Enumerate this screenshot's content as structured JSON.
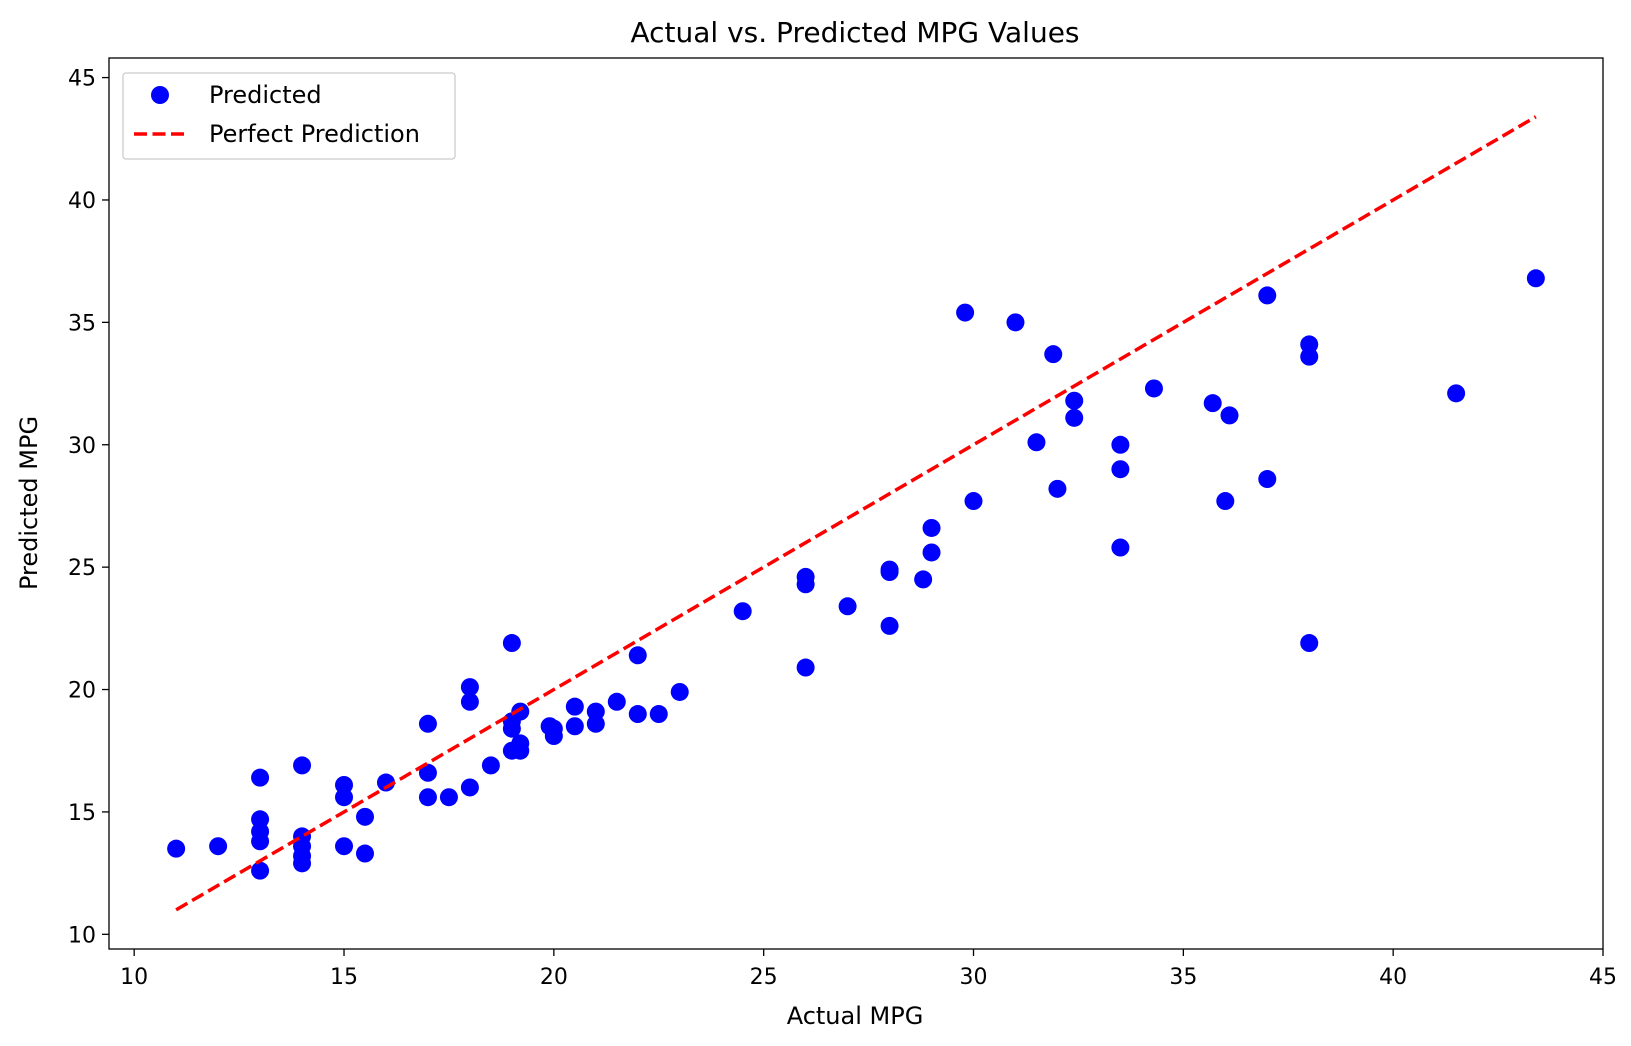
{
  "chart_data": {
    "type": "scatter",
    "title": "Actual vs. Predicted MPG Values",
    "xlabel": "Actual MPG",
    "ylabel": "Predicted MPG",
    "xlim": [
      9.4,
      45
    ],
    "ylim": [
      9.4,
      45.8
    ],
    "xticks": [
      10,
      15,
      20,
      25,
      30,
      35,
      40,
      45
    ],
    "yticks": [
      10,
      15,
      20,
      25,
      30,
      35,
      40,
      45
    ],
    "grid": false,
    "legend_position": "top-left",
    "series": [
      {
        "name": "Predicted",
        "kind": "scatter",
        "color": "#0000ff",
        "points": [
          [
            11,
            13.5
          ],
          [
            12,
            13.6
          ],
          [
            13,
            16.4
          ],
          [
            13,
            14.7
          ],
          [
            13,
            14.2
          ],
          [
            13,
            13.8
          ],
          [
            13,
            12.6
          ],
          [
            14,
            16.9
          ],
          [
            14,
            14.0
          ],
          [
            14,
            13.6
          ],
          [
            14,
            13.2
          ],
          [
            14,
            12.9
          ],
          [
            15,
            16.1
          ],
          [
            15,
            15.6
          ],
          [
            15,
            13.6
          ],
          [
            15.5,
            14.8
          ],
          [
            15.5,
            13.3
          ],
          [
            16,
            16.2
          ],
          [
            17,
            18.6
          ],
          [
            17,
            16.6
          ],
          [
            17,
            15.6
          ],
          [
            17.5,
            15.6
          ],
          [
            18,
            20.1
          ],
          [
            18,
            19.5
          ],
          [
            18,
            16.0
          ],
          [
            18.5,
            16.9
          ],
          [
            19,
            21.9
          ],
          [
            19,
            18.7
          ],
          [
            19,
            18.4
          ],
          [
            19,
            17.5
          ],
          [
            19.2,
            19.1
          ],
          [
            19.2,
            17.8
          ],
          [
            19.2,
            17.5
          ],
          [
            19.9,
            18.5
          ],
          [
            20,
            18.4
          ],
          [
            20,
            18.1
          ],
          [
            20.5,
            19.3
          ],
          [
            20.5,
            18.5
          ],
          [
            21,
            19.1
          ],
          [
            21,
            18.6
          ],
          [
            21.5,
            19.5
          ],
          [
            22,
            21.4
          ],
          [
            22,
            19.0
          ],
          [
            22.5,
            19.0
          ],
          [
            23,
            19.9
          ],
          [
            24.5,
            23.2
          ],
          [
            26,
            24.6
          ],
          [
            26,
            24.3
          ],
          [
            26,
            20.9
          ],
          [
            27,
            23.4
          ],
          [
            28,
            24.9
          ],
          [
            28,
            24.8
          ],
          [
            28,
            22.6
          ],
          [
            28.8,
            24.5
          ],
          [
            29,
            26.6
          ],
          [
            29,
            25.6
          ],
          [
            29.8,
            35.4
          ],
          [
            30,
            27.7
          ],
          [
            31,
            35.0
          ],
          [
            31.5,
            30.1
          ],
          [
            31.9,
            33.7
          ],
          [
            32,
            28.2
          ],
          [
            32.4,
            31.8
          ],
          [
            32.4,
            31.1
          ],
          [
            33.5,
            30.0
          ],
          [
            33.5,
            29.0
          ],
          [
            33.5,
            25.8
          ],
          [
            34.3,
            32.3
          ],
          [
            35.7,
            31.7
          ],
          [
            36,
            27.7
          ],
          [
            36.1,
            31.2
          ],
          [
            37,
            36.1
          ],
          [
            37,
            28.6
          ],
          [
            38,
            34.1
          ],
          [
            38,
            33.6
          ],
          [
            38,
            21.9
          ],
          [
            41.5,
            32.1
          ],
          [
            43.4,
            36.8
          ]
        ]
      },
      {
        "name": "Perfect Prediction",
        "kind": "line",
        "style": "dashed",
        "color": "#ff0000",
        "points": [
          [
            11,
            11
          ],
          [
            43.4,
            43.4
          ]
        ]
      }
    ]
  }
}
